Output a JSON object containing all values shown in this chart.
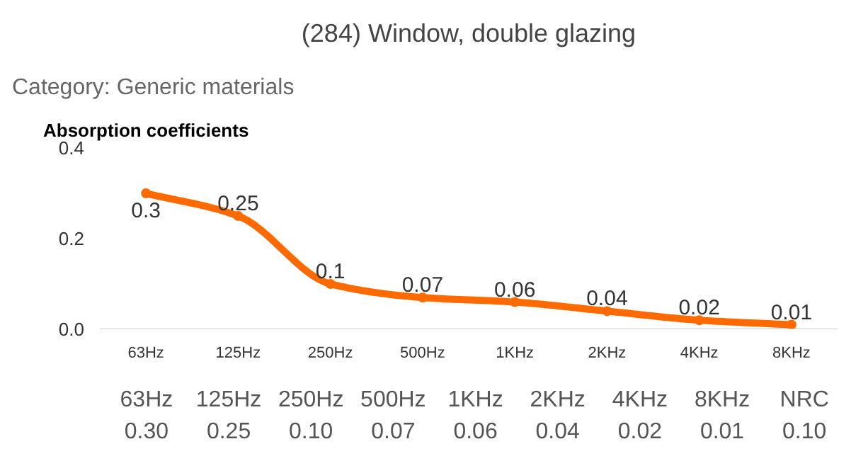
{
  "chart_data": {
    "type": "line",
    "title": "(284) Window, double glazing",
    "subtitle": "Category: Generic materials",
    "ylabel": "Absorption coefficients",
    "categories": [
      "63Hz",
      "125Hz",
      "250Hz",
      "500Hz",
      "1KHz",
      "2KHz",
      "4KHz",
      "8KHz"
    ],
    "series": [
      {
        "color": "#ff6a00",
        "values": [
          0.3,
          0.25,
          0.1,
          0.07,
          0.06,
          0.04,
          0.02,
          0.01
        ]
      }
    ],
    "ylim": [
      0,
      0.4
    ],
    "yticks": [
      {
        "value": 0,
        "label": "0.0"
      },
      0.2,
      0.4
    ],
    "grid": false,
    "marker": "circle",
    "line_style": "solid",
    "data_labels": true,
    "annotations": [
      "63Hz\n0.30",
      "125Hz\n0.25",
      "250Hz\n0.10",
      "500Hz\n0.07",
      "1KHz\n0.06",
      "2KHz\n0.04",
      "4KHz\n0.02",
      "8KHz\n0.01",
      "NRC\n0.10"
    ]
  }
}
